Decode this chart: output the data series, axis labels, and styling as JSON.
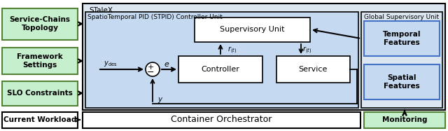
{
  "fig_width": 6.4,
  "fig_height": 1.87,
  "dpi": 100,
  "bg_color": "#ffffff",
  "green_fill": "#c6efce",
  "green_edge": "#538135",
  "blue_outer_fill": "#dce6f1",
  "blue_inner_fill": "#c5d9f1",
  "blue_edge": "#4472c4",
  "white_fill": "#ffffff",
  "black_edge": "#000000",
  "stalexlabel": "STaleX",
  "stpid_label": "SpatioTemporal PID (STPID) Controller Unit",
  "supervisory_label": "Supervisory Unit",
  "controller_label": "Controller",
  "service_label": "Service",
  "global_sup_label": "Global Supervisory Unit",
  "temporal_label": "Temporal\nFeatures",
  "spatial_label": "Spatial\nFeatures",
  "orchestrator_label": "Container Orchestrator",
  "monitoring_label": "Monitoring",
  "sc_topology_label": "Service-Chains\nTopology",
  "framework_label": "Framework\nSettings",
  "slo_label": "SLO Constraints",
  "workload_label": "Current Workload"
}
